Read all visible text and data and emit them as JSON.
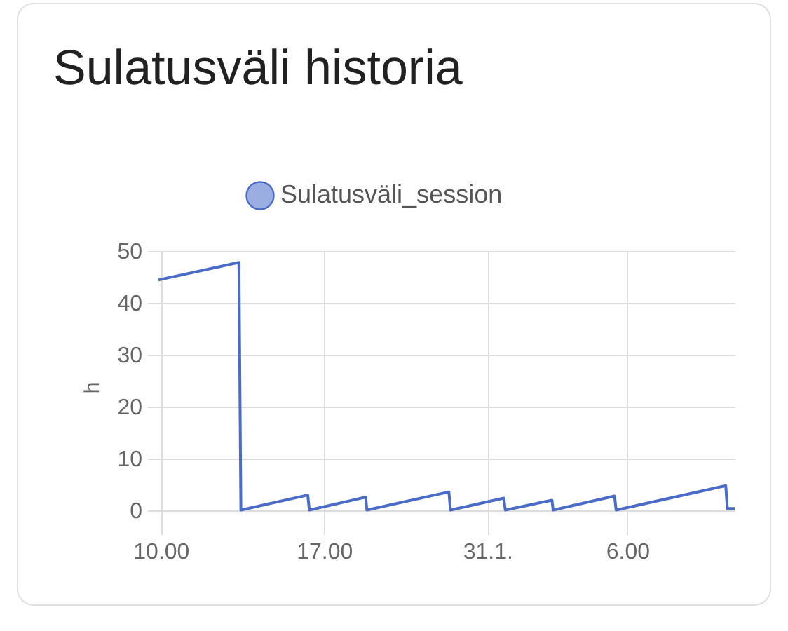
{
  "chart_data": {
    "type": "line",
    "title": "Sulatusväli historia",
    "ylabel": "h",
    "xlim": [
      "--01-30T09:54",
      "--01-31T10:36"
    ],
    "xticks": [
      {
        "value": "--01-30T10:00",
        "label": "10.00"
      },
      {
        "value": "--01-30T17:00",
        "label": "17.00"
      },
      {
        "value": "--01-31T00:00",
        "label": "31.1."
      },
      {
        "value": "--01-31T06:00",
        "label": "6.00"
      }
    ],
    "ylim": [
      -2.5,
      50
    ],
    "yticks": [
      0,
      10,
      20,
      30,
      40,
      50
    ],
    "series": [
      {
        "name": "Sulatusväli_session",
        "color": "#4a6bc8",
        "x": [
          "--01-30T09:54",
          "--01-30T13:21",
          "--01-30T13:26",
          "--01-30T16:18",
          "--01-30T16:22",
          "--01-30T18:47",
          "--01-30T18:50",
          "--01-30T22:21",
          "--01-30T22:25",
          "--01-31T00:42",
          "--01-31T00:46",
          "--01-31T02:46",
          "--01-31T02:49",
          "--01-31T05:27",
          "--01-31T05:31",
          "--01-31T10:13",
          "--01-31T10:17",
          "--01-31T10:36"
        ],
        "values": [
          44.4,
          47.8,
          0,
          2.9,
          0,
          2.5,
          0,
          3.5,
          0,
          2.3,
          0,
          1.9,
          0,
          2.7,
          0,
          4.7,
          0.3,
          0.3
        ]
      }
    ],
    "grid": true,
    "legend": "top",
    "marker": "none",
    "line_style": "solid"
  }
}
